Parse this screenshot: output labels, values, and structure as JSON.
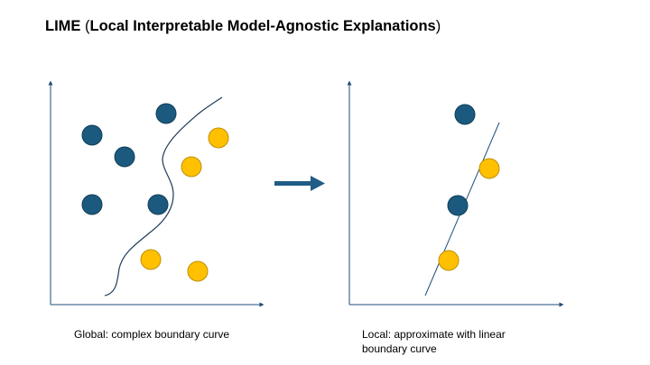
{
  "title": {
    "acronym": "LIME",
    "open_paren": "(",
    "expansion": "Local Interpretable Model-Agnostic Explanations",
    "close_paren": ")"
  },
  "captions": {
    "global": "Global: complex boundary curve",
    "local": "Local: approximate with linear boundary curve"
  },
  "colors": {
    "class_a": "#1b5a7e",
    "class_b": "#ffc000",
    "axis": "#1f4e79",
    "arrow": "#1f5d86",
    "boundary": "#1f3b5a"
  },
  "icons": {
    "transition": "right-arrow-icon"
  }
}
